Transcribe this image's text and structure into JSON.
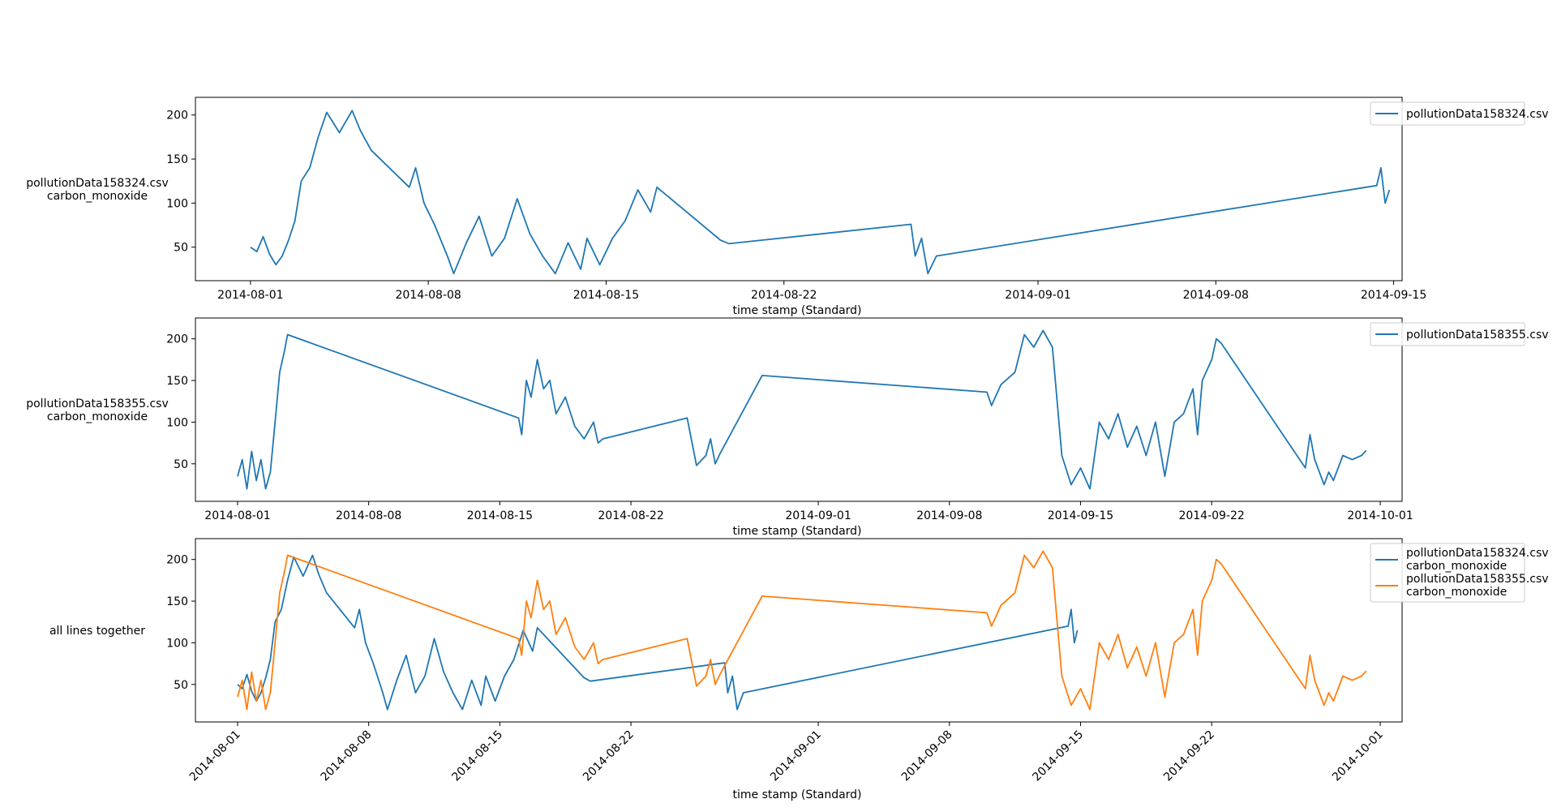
{
  "colors": {
    "series1": "#1f77b4",
    "series2": "#ff7f0e"
  },
  "chart_data": [
    {
      "type": "line",
      "xlabel": "time stamp (Standard)",
      "ylabel": [
        "pollutionData158324.csv",
        "carbon_monoxide"
      ],
      "xlim": [
        "2014-07-29T20:00",
        "2014-09-15T08:00"
      ],
      "ylim": [
        12,
        220
      ],
      "yticks": [
        50,
        100,
        150,
        200
      ],
      "xticks": [
        "2014-08-01",
        "2014-08-08",
        "2014-08-15",
        "2014-08-22",
        "2014-09-01",
        "2014-09-08",
        "2014-09-15"
      ],
      "xtick_rotation": 0,
      "legend_location": "upper-right-outside",
      "series": [
        {
          "name": "pollutionData158324.csv",
          "legend": [
            "pollutionData158324.csv"
          ],
          "color": "series1",
          "points": [
            [
              "2014-08-01T00:00",
              50
            ],
            [
              "2014-08-01T06:00",
              45
            ],
            [
              "2014-08-01T12:00",
              62
            ],
            [
              "2014-08-01T18:00",
              42
            ],
            [
              "2014-08-02T00:00",
              30
            ],
            [
              "2014-08-02T06:00",
              40
            ],
            [
              "2014-08-02T12:00",
              58
            ],
            [
              "2014-08-02T18:00",
              80
            ],
            [
              "2014-08-03T00:00",
              125
            ],
            [
              "2014-08-03T08:00",
              140
            ],
            [
              "2014-08-03T16:00",
              175
            ],
            [
              "2014-08-04T00:00",
              203
            ],
            [
              "2014-08-04T12:00",
              180
            ],
            [
              "2014-08-05T00:00",
              205
            ],
            [
              "2014-08-05T08:00",
              182
            ],
            [
              "2014-08-05T18:00",
              160
            ],
            [
              "2014-08-07T06:00",
              118
            ],
            [
              "2014-08-07T12:00",
              140
            ],
            [
              "2014-08-07T20:00",
              100
            ],
            [
              "2014-08-08T06:00",
              75
            ],
            [
              "2014-08-08T18:00",
              40
            ],
            [
              "2014-08-09T00:00",
              20
            ],
            [
              "2014-08-09T12:00",
              55
            ],
            [
              "2014-08-10T00:00",
              85
            ],
            [
              "2014-08-10T12:00",
              40
            ],
            [
              "2014-08-11T00:00",
              60
            ],
            [
              "2014-08-11T12:00",
              105
            ],
            [
              "2014-08-12T00:00",
              65
            ],
            [
              "2014-08-12T12:00",
              40
            ],
            [
              "2014-08-13T00:00",
              20
            ],
            [
              "2014-08-13T12:00",
              55
            ],
            [
              "2014-08-14T00:00",
              25
            ],
            [
              "2014-08-14T06:00",
              60
            ],
            [
              "2014-08-14T18:00",
              30
            ],
            [
              "2014-08-15T06:00",
              60
            ],
            [
              "2014-08-15T18:00",
              80
            ],
            [
              "2014-08-16T06:00",
              115
            ],
            [
              "2014-08-16T18:00",
              90
            ],
            [
              "2014-08-17T00:00",
              118
            ],
            [
              "2014-08-19T12:00",
              58
            ],
            [
              "2014-08-19T20:00",
              54
            ],
            [
              "2014-08-27T00:00",
              76
            ],
            [
              "2014-08-27T04:00",
              40
            ],
            [
              "2014-08-27T10:00",
              60
            ],
            [
              "2014-08-27T16:00",
              20
            ],
            [
              "2014-08-28T00:00",
              40
            ],
            [
              "2014-09-14T08:00",
              120
            ],
            [
              "2014-09-14T12:00",
              140
            ],
            [
              "2014-09-14T16:00",
              100
            ],
            [
              "2014-09-14T20:00",
              115
            ]
          ]
        }
      ]
    },
    {
      "type": "line",
      "xlabel": "time stamp (Standard)",
      "ylabel": [
        "pollutionData158355.csv",
        "carbon_monoxide"
      ],
      "xlim": [
        "2014-07-29T18:00",
        "2014-10-02T04:00"
      ],
      "ylim": [
        5,
        225
      ],
      "yticks": [
        50,
        100,
        150,
        200
      ],
      "xticks": [
        "2014-08-01",
        "2014-08-08",
        "2014-08-15",
        "2014-08-22",
        "2014-09-01",
        "2014-09-08",
        "2014-09-15",
        "2014-09-22",
        "2014-10-01"
      ],
      "xtick_rotation": 0,
      "legend_location": "upper-right-outside",
      "series": [
        {
          "name": "pollutionData158355.csv",
          "legend": [
            "pollutionData158355.csv"
          ],
          "color": "series1",
          "points": [
            [
              "2014-08-01T00:00",
              35
            ],
            [
              "2014-08-01T06:00",
              55
            ],
            [
              "2014-08-01T12:00",
              20
            ],
            [
              "2014-08-01T18:00",
              65
            ],
            [
              "2014-08-02T00:00",
              30
            ],
            [
              "2014-08-02T06:00",
              55
            ],
            [
              "2014-08-02T12:00",
              20
            ],
            [
              "2014-08-02T18:00",
              40
            ],
            [
              "2014-08-03T00:00",
              100
            ],
            [
              "2014-08-03T06:00",
              160
            ],
            [
              "2014-08-03T12:00",
              185
            ],
            [
              "2014-08-03T16:00",
              205
            ],
            [
              "2014-08-16T00:00",
              105
            ],
            [
              "2014-08-16T04:00",
              85
            ],
            [
              "2014-08-16T10:00",
              150
            ],
            [
              "2014-08-16T16:00",
              130
            ],
            [
              "2014-08-17T00:00",
              175
            ],
            [
              "2014-08-17T08:00",
              140
            ],
            [
              "2014-08-17T16:00",
              150
            ],
            [
              "2014-08-18T00:00",
              110
            ],
            [
              "2014-08-18T12:00",
              130
            ],
            [
              "2014-08-19T00:00",
              95
            ],
            [
              "2014-08-19T12:00",
              80
            ],
            [
              "2014-08-20T00:00",
              100
            ],
            [
              "2014-08-20T06:00",
              75
            ],
            [
              "2014-08-20T12:00",
              80
            ],
            [
              "2014-08-25T00:00",
              105
            ],
            [
              "2014-08-25T12:00",
              48
            ],
            [
              "2014-08-26T00:00",
              60
            ],
            [
              "2014-08-26T06:00",
              80
            ],
            [
              "2014-08-26T12:00",
              50
            ],
            [
              "2014-08-26T18:00",
              62
            ],
            [
              "2014-08-29T00:00",
              156
            ],
            [
              "2014-09-10T00:00",
              136
            ],
            [
              "2014-09-10T06:00",
              120
            ],
            [
              "2014-09-10T18:00",
              145
            ],
            [
              "2014-09-11T12:00",
              160
            ],
            [
              "2014-09-12T00:00",
              205
            ],
            [
              "2014-09-12T12:00",
              190
            ],
            [
              "2014-09-13T00:00",
              210
            ],
            [
              "2014-09-13T12:00",
              190
            ],
            [
              "2014-09-14T00:00",
              60
            ],
            [
              "2014-09-14T12:00",
              25
            ],
            [
              "2014-09-15T00:00",
              45
            ],
            [
              "2014-09-15T12:00",
              20
            ],
            [
              "2014-09-16T00:00",
              100
            ],
            [
              "2014-09-16T12:00",
              80
            ],
            [
              "2014-09-17T00:00",
              110
            ],
            [
              "2014-09-17T12:00",
              70
            ],
            [
              "2014-09-18T00:00",
              95
            ],
            [
              "2014-09-18T12:00",
              60
            ],
            [
              "2014-09-19T00:00",
              100
            ],
            [
              "2014-09-19T12:00",
              35
            ],
            [
              "2014-09-20T00:00",
              100
            ],
            [
              "2014-09-20T12:00",
              110
            ],
            [
              "2014-09-21T00:00",
              140
            ],
            [
              "2014-09-21T06:00",
              85
            ],
            [
              "2014-09-21T12:00",
              150
            ],
            [
              "2014-09-22T00:00",
              175
            ],
            [
              "2014-09-22T06:00",
              200
            ],
            [
              "2014-09-22T12:00",
              195
            ],
            [
              "2014-09-27T00:00",
              45
            ],
            [
              "2014-09-27T06:00",
              85
            ],
            [
              "2014-09-27T12:00",
              55
            ],
            [
              "2014-09-28T00:00",
              25
            ],
            [
              "2014-09-28T06:00",
              40
            ],
            [
              "2014-09-28T12:00",
              30
            ],
            [
              "2014-09-29T00:00",
              60
            ],
            [
              "2014-09-29T12:00",
              55
            ],
            [
              "2014-09-30T00:00",
              60
            ],
            [
              "2014-09-30T06:00",
              66
            ]
          ]
        }
      ]
    },
    {
      "type": "line",
      "title_side": "all lines together",
      "xlabel": "time stamp (Standard)",
      "ylabel": [
        "all lines together"
      ],
      "xlim": [
        "2014-07-29T18:00",
        "2014-10-02T04:00"
      ],
      "ylim": [
        5,
        225
      ],
      "yticks": [
        50,
        100,
        150,
        200
      ],
      "xticks": [
        "2014-08-01",
        "2014-08-08",
        "2014-08-15",
        "2014-08-22",
        "2014-09-01",
        "2014-09-08",
        "2014-09-15",
        "2014-09-22",
        "2014-10-01"
      ],
      "xtick_rotation": -45,
      "legend_location": "upper-right-outside",
      "series": [
        {
          "name": "pollutionData158324.csv carbon_monoxide",
          "legend": [
            "pollutionData158324.csv",
            "carbon_monoxide"
          ],
          "color": "series1",
          "ref": 0
        },
        {
          "name": "pollutionData158355.csv carbon_monoxide",
          "legend": [
            "pollutionData158355.csv",
            "carbon_monoxide"
          ],
          "color": "series2",
          "ref": 1
        }
      ]
    }
  ]
}
